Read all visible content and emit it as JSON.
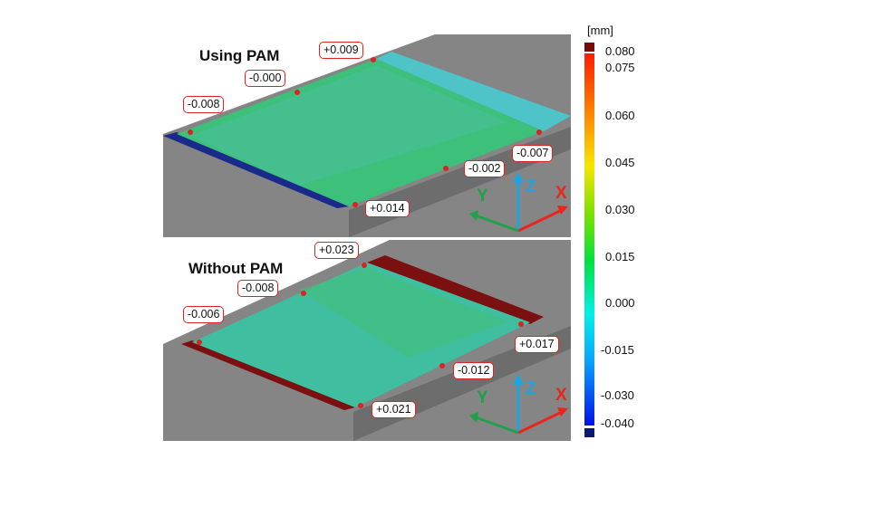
{
  "panels": [
    {
      "title": "Using PAM",
      "labels": [
        "+0.009",
        "-0.000",
        "-0.008",
        "-0.007",
        "-0.002",
        "+0.014"
      ]
    },
    {
      "title": "Without PAM",
      "labels": [
        "+0.023",
        "-0.008",
        "-0.006",
        "+0.017",
        "-0.012",
        "+0.021"
      ]
    }
  ],
  "axes": {
    "x": "X",
    "y": "Y",
    "z": "Z",
    "colors": {
      "x": "#e8251f",
      "y": "#1fa04a",
      "z": "#1ea5e0"
    }
  },
  "colorbar": {
    "unit": "[mm]",
    "ticks": [
      "0.080",
      "0.075",
      "0.060",
      "0.045",
      "0.030",
      "0.015",
      "0.000",
      "-0.015",
      "-0.030",
      "-0.040"
    ],
    "range": [
      -0.04,
      0.08
    ],
    "over_color": "#7a0a0a",
    "under_color": "#0a1a6e"
  },
  "colors": {
    "label_border": "#d22222",
    "slab": "#808080"
  }
}
